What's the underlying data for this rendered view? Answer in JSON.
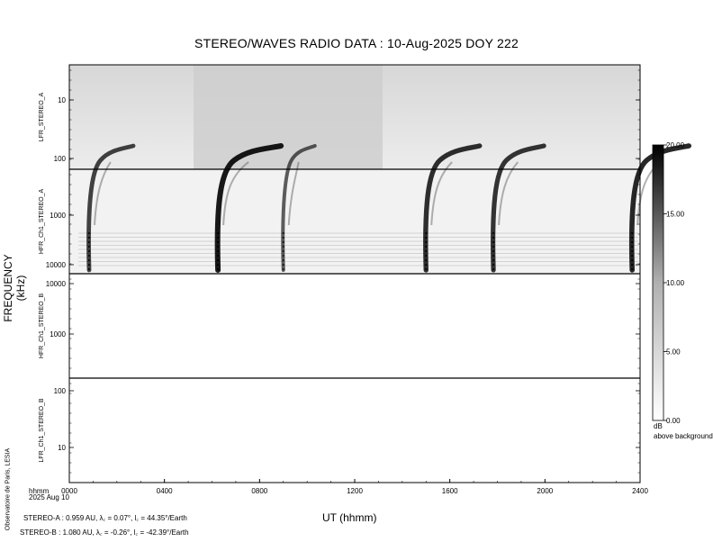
{
  "title": "STEREO/WAVES  RADIO  DATA : 10-Aug-2025  DOY 222",
  "y_axis_main_label": "FREQUENCY (kHz)",
  "x_axis_label": "UT (hhmm)",
  "time_unit_label": "hhmm",
  "date_label": "2025 Aug 10",
  "credit": "Observatoire de Paris, LESIA",
  "orbit": {
    "stereo_a": "STEREO-A : 0.959 AU, λ꜀ = 0.07°, l꜀ = 44.35°/Earth",
    "stereo_b": "STEREO-B : 1.080 AU, λ꜀ = -0.26°, l꜀ = -42.39°/Earth"
  },
  "colorbar": {
    "ticks": [
      "20.00",
      "15.00",
      "10.00",
      "5.00",
      "0.00"
    ],
    "unit": "dB",
    "caption": "above background",
    "range": [
      0,
      20
    ]
  },
  "chart_data": {
    "type": "heatmap",
    "x_ticks": [
      "0000",
      "0400",
      "0800",
      "1200",
      "1600",
      "2000",
      "2400"
    ],
    "xlim": [
      "0000",
      "2400"
    ],
    "panels": [
      {
        "name": "LFR_STEREO_A",
        "y_ticks": [
          "10",
          "100"
        ],
        "scale": "log"
      },
      {
        "name": "HFR_Ch1_STEREO_A",
        "y_ticks": [
          "1000",
          "10000"
        ],
        "scale": "log"
      },
      {
        "name": "HFR_Ch1_STEREO_B",
        "y_ticks": [
          "10000",
          "1000"
        ],
        "scale": "log"
      },
      {
        "name": "LFR_Ch1_STEREO_B",
        "y_ticks": [
          "100",
          "10"
        ],
        "scale": "log"
      }
    ],
    "bursts_stereo_a_hhmm": [
      "0050",
      "0615",
      "0900",
      "1500",
      "1750",
      "2340"
    ]
  }
}
